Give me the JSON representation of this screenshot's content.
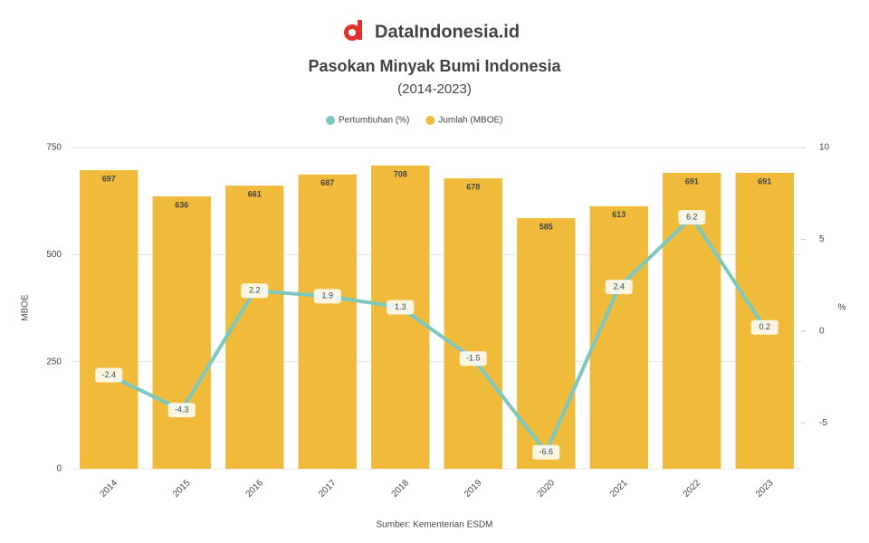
{
  "brand": "DataIndonesia.id",
  "chart_data": {
    "type": "bar-line",
    "title": "Pasokan Minyak Bumi Indonesia",
    "subtitle": "(2014-2023)",
    "source": "Sumber: Kementerian ESDM",
    "y_label": "MBOE",
    "y2_label": "%",
    "categories": [
      "2014",
      "2015",
      "2016",
      "2017",
      "2018",
      "2019",
      "2020",
      "2021",
      "2022",
      "2023"
    ],
    "series": [
      {
        "name": "Pertumbuhan (%)",
        "type": "line",
        "axis": "y2",
        "color": "#7cc7bf",
        "values": [
          -2.4,
          -4.3,
          2.2,
          1.9,
          1.3,
          -1.5,
          -6.6,
          2.4,
          6.2,
          0.2
        ]
      },
      {
        "name": "Jumlah (MBOE)",
        "type": "bar",
        "color": "#f0bb3a",
        "values": [
          697,
          636,
          661,
          687,
          708,
          678,
          585,
          613,
          691,
          691
        ]
      }
    ],
    "ylim": [
      0,
      750
    ],
    "yticks": [
      0,
      250,
      500,
      750
    ],
    "y2lim": [
      -7.5,
      10
    ],
    "y2ticks": [
      -5,
      0,
      5,
      10
    ],
    "grid": true,
    "legend": "top"
  }
}
